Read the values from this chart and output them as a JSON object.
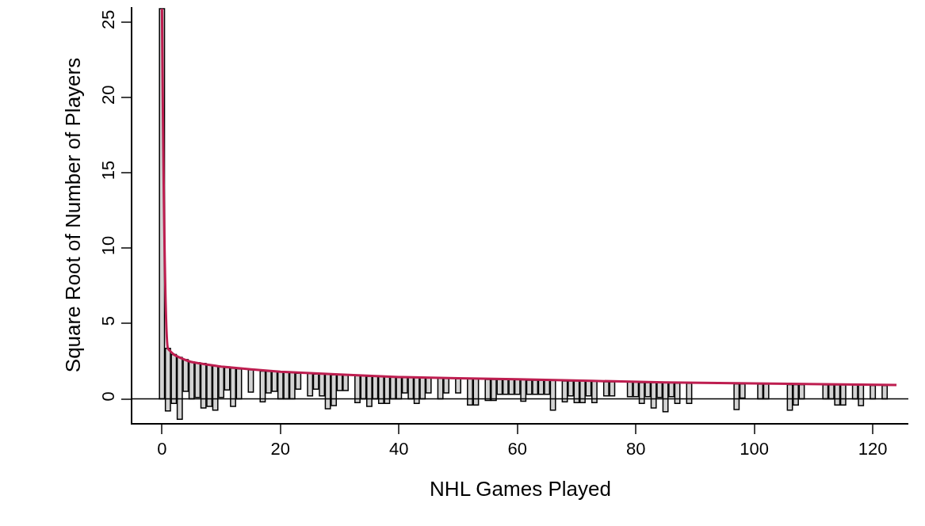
{
  "chart_data": {
    "type": "bar",
    "xlabel": "NHL Games Played",
    "ylabel": "Square Root of Number of Players",
    "xlim": [
      -5,
      126
    ],
    "xticks": [
      0,
      20,
      40,
      60,
      80,
      100,
      120
    ],
    "ylim": [
      -1.6,
      26
    ],
    "yticks": [
      0,
      5,
      10,
      15,
      20,
      25
    ],
    "ref_lines": [
      {
        "axis": "y",
        "value": 0,
        "color": "#000000"
      }
    ],
    "series": [
      {
        "color": "#d3d3d3",
        "x": [
          0,
          1,
          2,
          3,
          4,
          5,
          6,
          7,
          8,
          9,
          10,
          11,
          12,
          13,
          15,
          17,
          18,
          19,
          20,
          21,
          22,
          23,
          25,
          26,
          27,
          28,
          29,
          30,
          31,
          33,
          34,
          35,
          36,
          37,
          38,
          39,
          40,
          41,
          42,
          43,
          44,
          45,
          47,
          48,
          50,
          52,
          53,
          55,
          56,
          57,
          58,
          59,
          60,
          61,
          62,
          63,
          64,
          65,
          66,
          68,
          69,
          70,
          71,
          72,
          73,
          75,
          76,
          79,
          80,
          81,
          82,
          83,
          84,
          85,
          86,
          87,
          89,
          97,
          98,
          101,
          102,
          106,
          107,
          108,
          112,
          113,
          114,
          115,
          117,
          118,
          120,
          122
        ],
        "base": [
          0,
          -0.8,
          -0.3,
          -1.35,
          0.5,
          0,
          0.1,
          -0.6,
          -0.5,
          -0.75,
          0.1,
          0.6,
          -0.5,
          0,
          0.45,
          -0.2,
          0.4,
          0.5,
          0,
          0,
          0,
          0.65,
          0.2,
          0.65,
          0.2,
          -0.65,
          -0.45,
          0.55,
          0.55,
          -0.25,
          0,
          -0.5,
          0,
          -0.3,
          -0.3,
          0,
          0,
          0.4,
          0,
          -0.3,
          0,
          0.4,
          0,
          0.4,
          0.4,
          -0.4,
          -0.4,
          -0.1,
          -0.1,
          0.3,
          0.3,
          0.3,
          0.3,
          -0.15,
          0.3,
          0.3,
          0.3,
          0.3,
          -0.75,
          -0.2,
          0.2,
          -0.25,
          -0.25,
          0.2,
          -0.25,
          0.2,
          0.2,
          0.15,
          0.15,
          -0.3,
          0.15,
          -0.6,
          0.1,
          -0.85,
          0.15,
          -0.3,
          -0.3,
          -0.7,
          0.05,
          0,
          0,
          -0.75,
          -0.4,
          0,
          0,
          0,
          -0.4,
          -0.4,
          0,
          -0.45,
          0,
          0
        ],
        "values": [
          25.9,
          4.15,
          3.25,
          4.1,
          2.1,
          2.45,
          2.3,
          2.95,
          2.75,
          2.95,
          2.05,
          1.5,
          2.55,
          2.0,
          1.5,
          2.05,
          1.45,
          1.3,
          1.8,
          1.75,
          1.75,
          1.05,
          1.5,
          1.0,
          1.45,
          2.3,
          2.05,
          1.05,
          1.05,
          1.8,
          1.55,
          2.0,
          1.5,
          1.8,
          1.8,
          1.45,
          1.45,
          1.05,
          1.45,
          1.75,
          1.4,
          1.0,
          1.4,
          1.0,
          0.95,
          1.75,
          1.75,
          1.4,
          1.4,
          1.0,
          1.0,
          1.0,
          1.0,
          1.45,
          0.95,
          0.95,
          0.95,
          0.95,
          2.0,
          1.4,
          1.0,
          1.45,
          1.45,
          1.0,
          1.45,
          0.95,
          0.95,
          1.0,
          1.0,
          1.4,
          0.95,
          1.7,
          1.0,
          1.95,
          0.95,
          1.35,
          1.35,
          1.7,
          0.95,
          1.0,
          1.0,
          1.7,
          1.35,
          0.95,
          0.95,
          0.95,
          1.35,
          1.35,
          0.95,
          1.4,
          0.9,
          0.9
        ]
      },
      {
        "type": "line",
        "color": "#be1e50",
        "x": [
          0,
          1,
          2,
          3,
          5,
          10,
          20,
          40,
          60,
          85,
          124
        ],
        "values": [
          25.9,
          3.35,
          2.95,
          2.75,
          2.45,
          2.15,
          1.8,
          1.45,
          1.3,
          1.1,
          0.92
        ]
      }
    ]
  }
}
